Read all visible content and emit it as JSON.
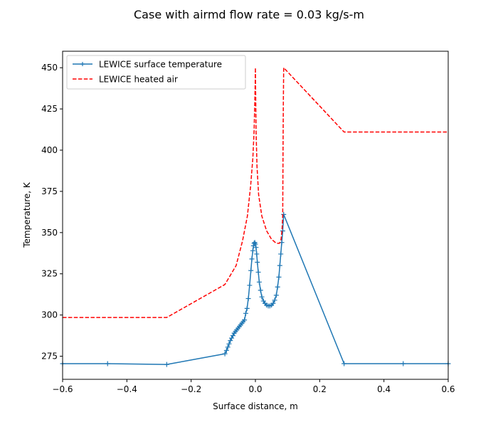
{
  "chart_data": {
    "type": "line",
    "title": "Case with airmd flow rate = 0.03 kg/s-m",
    "xlabel": "Surface distance, m",
    "ylabel": "Temperature, K",
    "xlim": [
      -0.6,
      0.6
    ],
    "ylim": [
      261,
      460
    ],
    "xticks": [
      -0.6,
      -0.4,
      -0.2,
      0.0,
      0.2,
      0.4,
      0.6
    ],
    "xtick_labels": [
      "−0.6",
      "−0.4",
      "−0.2",
      "0.0",
      "0.2",
      "0.4",
      "0.6"
    ],
    "yticks": [
      275,
      300,
      325,
      350,
      375,
      400,
      425,
      450
    ],
    "ytick_labels": [
      "275",
      "300",
      "325",
      "350",
      "375",
      "400",
      "425",
      "450"
    ],
    "grid": false,
    "legend_position": "upper-left",
    "series": [
      {
        "name": "LEWICE surface temperature",
        "color": "#1f77b4",
        "style": "solid",
        "marker": "plus",
        "x": [
          -0.6,
          -0.46,
          -0.276,
          -0.095,
          -0.09,
          -0.086,
          -0.082,
          -0.078,
          -0.074,
          -0.07,
          -0.066,
          -0.062,
          -0.058,
          -0.054,
          -0.05,
          -0.046,
          -0.042,
          -0.038,
          -0.034,
          -0.03,
          -0.026,
          -0.022,
          -0.018,
          -0.014,
          -0.011,
          -0.008,
          -0.006,
          -0.004,
          -0.002,
          0.0,
          0.002,
          0.004,
          0.006,
          0.009,
          0.012,
          0.016,
          0.02,
          0.025,
          0.03,
          0.035,
          0.04,
          0.045,
          0.05,
          0.055,
          0.06,
          0.065,
          0.069,
          0.073,
          0.076,
          0.079,
          0.082,
          0.085,
          0.088,
          0.276,
          0.46,
          0.6
        ],
        "y": [
          270.5,
          270.5,
          270.0,
          276.5,
          278.5,
          280.5,
          282.5,
          284.5,
          286.0,
          287.5,
          289.0,
          290.0,
          291.0,
          292.0,
          293.0,
          294.0,
          295.0,
          296.0,
          297.0,
          301.0,
          304.0,
          310.0,
          318.0,
          327.0,
          334.0,
          339.0,
          342.0,
          343.5,
          344.0,
          343.0,
          341.0,
          337.0,
          332.0,
          326.0,
          320.0,
          315.0,
          311.0,
          308.5,
          307.0,
          306.0,
          305.5,
          305.5,
          306.0,
          307.0,
          309.0,
          312.0,
          317.0,
          323.0,
          330.0,
          337.0,
          344.0,
          351.0,
          361.0,
          270.5,
          270.5,
          270.5
        ]
      },
      {
        "name": "LEWICE heated air",
        "color": "#ff0000",
        "style": "dashed",
        "marker": "none",
        "x": [
          -0.6,
          -0.276,
          -0.095,
          -0.06,
          -0.04,
          -0.025,
          -0.015,
          -0.008,
          -0.004,
          -0.002,
          -0.0005,
          0.0,
          0.0005,
          0.002,
          0.005,
          0.01,
          0.02,
          0.035,
          0.05,
          0.065,
          0.075,
          0.08,
          0.083,
          0.085,
          0.086,
          0.087,
          0.088,
          0.276,
          0.6
        ],
        "y": [
          298.5,
          298.5,
          318.5,
          330.0,
          345.0,
          360.0,
          378.0,
          395.0,
          412.0,
          428.0,
          442.0,
          450.0,
          440.0,
          412.0,
          390.0,
          373.0,
          360.0,
          351.0,
          346.0,
          343.5,
          343.5,
          346.0,
          352.0,
          360.0,
          400.0,
          430.0,
          450.0,
          411.0,
          411.0
        ]
      }
    ]
  }
}
